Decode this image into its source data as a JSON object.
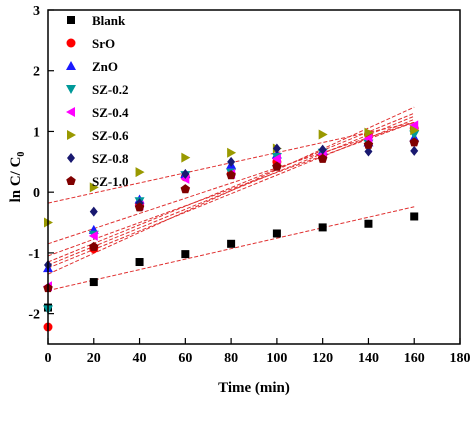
{
  "chart_data": {
    "type": "scatter",
    "xlabel": "Time (min)",
    "ylabel_main": "ln C/ C",
    "ylabel_sub": "0",
    "xlim": [
      0,
      180
    ],
    "ylim": [
      -2.5,
      3
    ],
    "xticks": [
      0,
      20,
      40,
      60,
      80,
      100,
      120,
      140,
      160,
      180
    ],
    "yticks": [
      -2,
      -1,
      0,
      1,
      2,
      3
    ],
    "grid": false,
    "legend_position": "top-left",
    "series": [
      {
        "name": "Blank",
        "marker": "square",
        "color": "#000000",
        "x": [
          0,
          20,
          40,
          60,
          80,
          100,
          120,
          140,
          160
        ],
        "y": [
          -1.9,
          -1.48,
          -1.15,
          -1.02,
          -0.85,
          -0.68,
          -0.58,
          -0.52,
          -0.4
        ],
        "fit": [
          -1.62,
          -0.24
        ]
      },
      {
        "name": "SrO",
        "marker": "circle",
        "color": "#ff0000",
        "x": [
          0,
          20,
          40,
          60,
          80,
          100,
          120,
          140,
          160
        ],
        "y": [
          -2.22,
          -0.93,
          -0.2,
          0.25,
          0.3,
          0.5,
          0.6,
          0.95,
          1.05
        ],
        "fit": [
          -1.25,
          1.2
        ]
      },
      {
        "name": "ZnO",
        "marker": "triangle-up",
        "color": "#1a1aff",
        "x": [
          0,
          20,
          40,
          60,
          80,
          100,
          120,
          140,
          160
        ],
        "y": [
          -1.25,
          -0.62,
          -0.12,
          0.3,
          0.45,
          0.62,
          0.68,
          0.82,
          0.9
        ],
        "fit": [
          -1.05,
          1.15
        ]
      },
      {
        "name": "SZ-0.2",
        "marker": "triangle-down",
        "color": "#009999",
        "x": [
          0,
          20,
          40,
          60,
          80,
          100,
          120,
          140,
          160
        ],
        "y": [
          -1.93,
          -0.7,
          -0.15,
          0.28,
          0.32,
          0.58,
          0.65,
          0.8,
          0.95
        ],
        "fit": [
          -1.2,
          1.25
        ]
      },
      {
        "name": "SZ-0.4",
        "marker": "triangle-left",
        "color": "#ff00ff",
        "x": [
          0,
          20,
          40,
          60,
          80,
          100,
          120,
          140,
          160
        ],
        "y": [
          -1.55,
          -0.72,
          -0.22,
          0.22,
          0.3,
          0.55,
          0.62,
          0.88,
          1.1
        ],
        "fit": [
          -1.15,
          1.3
        ]
      },
      {
        "name": "SZ-0.6",
        "marker": "triangle-right",
        "color": "#999900",
        "x": [
          0,
          20,
          40,
          60,
          80,
          100,
          120,
          140,
          160
        ],
        "y": [
          -0.5,
          0.08,
          0.33,
          0.57,
          0.65,
          0.72,
          0.95,
          0.98,
          1.02
        ],
        "fit": [
          -0.18,
          1.15
        ]
      },
      {
        "name": "SZ-0.8",
        "marker": "diamond",
        "color": "#191970",
        "x": [
          0,
          20,
          40,
          60,
          80,
          100,
          120,
          140,
          160
        ],
        "y": [
          -1.2,
          -0.32,
          -0.18,
          0.3,
          0.5,
          0.72,
          0.7,
          0.67,
          0.68
        ],
        "fit": [
          -0.85,
          1.15
        ]
      },
      {
        "name": "SZ-1.0",
        "marker": "pentagon",
        "color": "#800000",
        "x": [
          0,
          20,
          40,
          60,
          80,
          100,
          120,
          140,
          160
        ],
        "y": [
          -1.58,
          -0.9,
          -0.25,
          0.05,
          0.28,
          0.42,
          0.55,
          0.78,
          0.82
        ],
        "fit": [
          -1.35,
          1.4
        ]
      }
    ]
  }
}
